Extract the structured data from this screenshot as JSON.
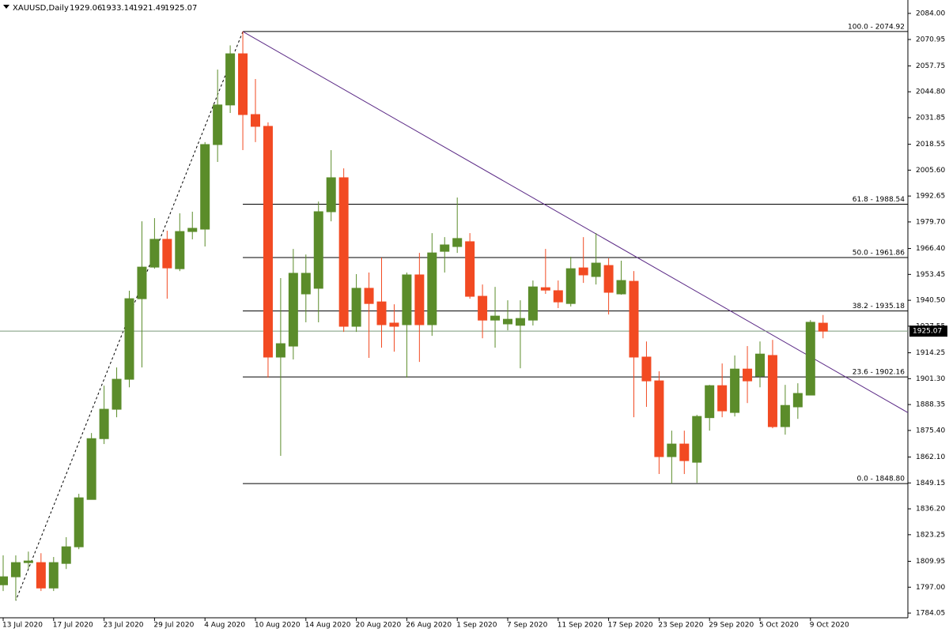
{
  "chart_data": {
    "type": "candlestick",
    "title": "XAUUSD,Daily",
    "header_values": [
      1929.06,
      1933.14,
      1921.49,
      1925.07
    ],
    "categories": [
      "13 Jul 2020",
      null,
      null,
      null,
      "17 Jul 2020",
      null,
      null,
      null,
      "23 Jul 2020",
      null,
      null,
      null,
      "29 Jul 2020",
      null,
      null,
      null,
      "4 Aug 2020",
      null,
      null,
      null,
      "10 Aug 2020",
      null,
      null,
      null,
      "14 Aug 2020",
      null,
      null,
      null,
      "20 Aug 2020",
      null,
      null,
      null,
      "26 Aug 2020",
      null,
      null,
      null,
      "1 Sep 2020",
      null,
      null,
      null,
      "7 Sep 2020",
      null,
      null,
      null,
      "11 Sep 2020",
      null,
      null,
      null,
      "17 Sep 2020",
      null,
      null,
      null,
      "23 Sep 2020",
      null,
      null,
      null,
      "29 Sep 2020",
      null,
      null,
      null,
      "5 Oct 2020",
      null,
      null,
      null,
      "9 Oct 2020",
      null
    ],
    "open": [
      1798.2,
      1802.2,
      1809.3,
      1809.3,
      1796.6,
      1808.9,
      1817.2,
      1840.9,
      1871.3,
      1886.0,
      1901.0,
      1941.3,
      1957.1,
      1971.0,
      1956.3,
      1974.9,
      1976.1,
      2018.4,
      2038.2,
      2063.8,
      2033.4,
      2027.5,
      1912.1,
      1917.6,
      1943.7,
      1946.5,
      1984.8,
      2001.8,
      1927.5,
      1946.5,
      1939.7,
      1929.1,
      1928.3,
      1953.2,
      1928.3,
      1965.0,
      1967.4,
      1969.8,
      1942.5,
      1930.6,
      1928.7,
      1928.0,
      1930.6,
      1946.8,
      1945.3,
      1938.9,
      1956.7,
      1952.4,
      1957.9,
      1943.7,
      1950.0,
      1912.1,
      1900.2,
      1862.3,
      1868.6,
      1859.5,
      1881.8,
      1897.8,
      1884.4,
      1906.1,
      1902.6,
      1912.9,
      1877.3,
      1887.2,
      1893.1,
      1929.06
    ],
    "high": [
      1812.9,
      1812.9,
      1814.8,
      1814.0,
      1812.1,
      1822.0,
      1843.7,
      1874.1,
      1897.8,
      1906.9,
      1945.3,
      1980.0,
      1981.6,
      1975.3,
      1984.0,
      1984.8,
      2019.6,
      2055.9,
      2068.0,
      2074.92,
      2051.2,
      2029.5,
      1951.6,
      1966.2,
      1963.4,
      1989.9,
      2015.6,
      2006.5,
      1953.6,
      1954.4,
      1961.9,
      1938.5,
      1954.4,
      1964.2,
      1974.1,
      1972.1,
      1991.9,
      1974.1,
      1948.4,
      1947.2,
      1940.5,
      1940.5,
      1950.4,
      1966.2,
      1950.4,
      1962.3,
      1972.1,
      1974.1,
      1961.5,
      1960.3,
      1955.1,
      1919.9,
      1905.0,
      1875.3,
      1875.3,
      1883.2,
      1898.2,
      1908.9,
      1912.9,
      1917.6,
      1919.9,
      1920.7,
      1898.2,
      1899.0,
      1930.6,
      1933.14
    ],
    "low": [
      1795.1,
      1790.3,
      1806.1,
      1795.1,
      1795.1,
      1806.1,
      1816.0,
      1840.9,
      1868.6,
      1882.0,
      1897.0,
      1906.9,
      1956.3,
      1941.3,
      1955.1,
      1971.0,
      1967.4,
      2009.7,
      2034.2,
      2015.6,
      2019.6,
      1901.8,
      1862.7,
      1910.9,
      1929.5,
      1929.5,
      1980.0,
      1924.7,
      1924.7,
      1911.7,
      1916.8,
      1914.8,
      1901.8,
      1909.7,
      1922.7,
      1954.4,
      1964.2,
      1941.3,
      1921.5,
      1916.8,
      1925.5,
      1906.5,
      1927.9,
      1943.7,
      1936.6,
      1937.4,
      1949.2,
      1948.4,
      1933.4,
      1943.3,
      1882.0,
      1887.2,
      1853.6,
      1848.8,
      1853.6,
      1849.2,
      1875.3,
      1882.0,
      1882.4,
      1889.1,
      1897.0,
      1876.5,
      1873.3,
      1881.2,
      1893.1,
      1921.49
    ],
    "close": [
      1802.2,
      1809.3,
      1810.1,
      1796.6,
      1809.3,
      1817.2,
      1841.7,
      1871.3,
      1886.0,
      1901.0,
      1941.3,
      1957.1,
      1971.0,
      1956.7,
      1974.9,
      1976.5,
      2018.4,
      2038.2,
      2063.8,
      2033.4,
      2027.5,
      1912.1,
      1918.8,
      1954.0,
      1954.0,
      1984.8,
      2001.8,
      1927.5,
      1946.5,
      1938.9,
      1928.3,
      1927.5,
      1953.2,
      1928.3,
      1964.2,
      1968.2,
      1971.4,
      1942.5,
      1930.6,
      1932.6,
      1931.0,
      1931.4,
      1947.2,
      1945.6,
      1939.7,
      1956.3,
      1953.2,
      1959.1,
      1944.5,
      1950.4,
      1912.1,
      1900.2,
      1862.3,
      1868.6,
      1860.3,
      1882.4,
      1897.8,
      1885.2,
      1906.1,
      1900.2,
      1913.6,
      1877.3,
      1887.9,
      1893.9,
      1929.5,
      1925.07
    ],
    "up_color": "#5b8c2a",
    "down_color": "#f24a22",
    "ylim": [
      1781.7,
      2090.7
    ],
    "yticks": [
      {
        "value": 2084.0,
        "label": "2084.00"
      },
      {
        "value": 2070.95,
        "label": "2070.95"
      },
      {
        "value": 2057.75,
        "label": "2057.75"
      },
      {
        "value": 2044.8,
        "label": "2044.80"
      },
      {
        "value": 2031.85,
        "label": "2031.85"
      },
      {
        "value": 2018.55,
        "label": "2018.55"
      },
      {
        "value": 2005.6,
        "label": "2005.60"
      },
      {
        "value": 1992.65,
        "label": "1992.65"
      },
      {
        "value": 1979.7,
        "label": "1979.70"
      },
      {
        "value": 1966.4,
        "label": "1966.40"
      },
      {
        "value": 1953.45,
        "label": "1953.45"
      },
      {
        "value": 1940.5,
        "label": "1940.50"
      },
      {
        "value": 1927.55,
        "label": "1927.55"
      },
      {
        "value": 1914.25,
        "label": "1914.25"
      },
      {
        "value": 1901.3,
        "label": "1901.30"
      },
      {
        "value": 1888.35,
        "label": "1888.35"
      },
      {
        "value": 1875.4,
        "label": "1875.40"
      },
      {
        "value": 1862.1,
        "label": "1862.10"
      },
      {
        "value": 1849.15,
        "label": "1849.15"
      },
      {
        "value": 1836.2,
        "label": "1836.20"
      },
      {
        "value": 1823.25,
        "label": "1823.25"
      },
      {
        "value": 1809.95,
        "label": "1809.95"
      },
      {
        "value": 1797.0,
        "label": "1797.00"
      },
      {
        "value": 1784.05,
        "label": "1784.05"
      }
    ],
    "fib_levels": [
      {
        "value": 2074.92,
        "label": "100.0 - 2074.92"
      },
      {
        "value": 1988.54,
        "label": "61.8 - 1988.54"
      },
      {
        "value": 1961.86,
        "label": "50.0 - 1961.86"
      },
      {
        "value": 1935.18,
        "label": "38.2 - 1935.18"
      },
      {
        "value": 1902.16,
        "label": "23.6 - 1902.16"
      },
      {
        "value": 1848.8,
        "label": "0.0 - 1848.80"
      }
    ],
    "trendline": {
      "color": "#5b2a86",
      "x": [
        19,
        47
      ],
      "y": [
        2074.92,
        1973.7
      ]
    },
    "last_price": 1925.07
  }
}
